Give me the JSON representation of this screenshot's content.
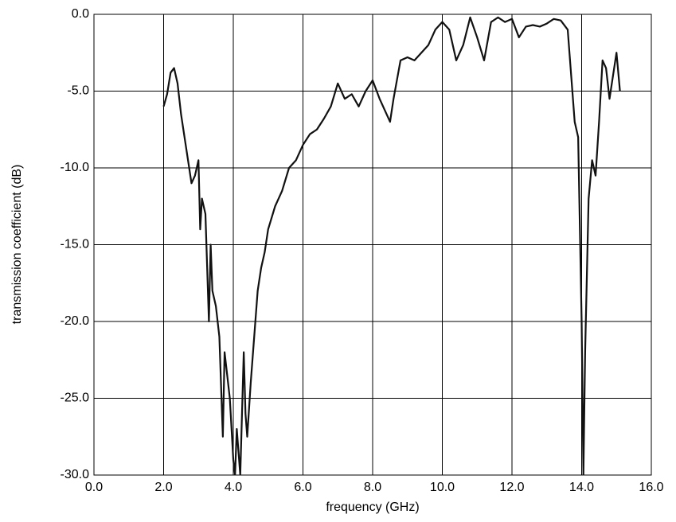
{
  "chart_data": {
    "type": "line",
    "xlabel": "frequency (GHz)",
    "ylabel": "transmission coefficient (dB)",
    "x": [
      2.0,
      2.1,
      2.2,
      2.3,
      2.4,
      2.5,
      2.6,
      2.7,
      2.8,
      2.9,
      3.0,
      3.05,
      3.1,
      3.2,
      3.3,
      3.35,
      3.4,
      3.5,
      3.6,
      3.7,
      3.75,
      3.8,
      3.9,
      4.0,
      4.05,
      4.1,
      4.2,
      4.3,
      4.35,
      4.4,
      4.5,
      4.6,
      4.7,
      4.8,
      4.9,
      5.0,
      5.2,
      5.4,
      5.6,
      5.8,
      6.0,
      6.2,
      6.4,
      6.6,
      6.8,
      7.0,
      7.2,
      7.4,
      7.6,
      7.8,
      8.0,
      8.2,
      8.4,
      8.5,
      8.6,
      8.8,
      9.0,
      9.2,
      9.4,
      9.6,
      9.8,
      10.0,
      10.2,
      10.4,
      10.6,
      10.8,
      11.0,
      11.2,
      11.4,
      11.6,
      11.8,
      12.0,
      12.2,
      12.4,
      12.6,
      12.8,
      13.0,
      13.2,
      13.4,
      13.6,
      13.7,
      13.8,
      13.9,
      14.0,
      14.05,
      14.1,
      14.2,
      14.3,
      14.4,
      14.5,
      14.6,
      14.7,
      14.8,
      14.9,
      15.0,
      15.1
    ],
    "series": [
      {
        "color": "#111111",
        "values": [
          -6,
          -5.2,
          -3.8,
          -3.5,
          -4.5,
          -6.5,
          -8,
          -9.5,
          -11,
          -10.5,
          -9.5,
          -14,
          -12,
          -13,
          -20,
          -15,
          -18,
          -19,
          -21,
          -27.5,
          -22,
          -23,
          -25,
          -29,
          -30,
          -27,
          -30,
          -22,
          -26,
          -27.5,
          -24,
          -21,
          -18,
          -16.5,
          -15.5,
          -14,
          -12.5,
          -11.5,
          -10,
          -9.5,
          -8.5,
          -7.8,
          -7.5,
          -6.8,
          -6,
          -4.5,
          -5.5,
          -5.2,
          -6,
          -5,
          -4.3,
          -5.5,
          -6.5,
          -7,
          -5.5,
          -3,
          -2.8,
          -3,
          -2.5,
          -2,
          -1,
          -0.5,
          -1,
          -3,
          -2,
          -0.2,
          -1.5,
          -3,
          -0.5,
          -0.2,
          -0.5,
          -0.3,
          -1.5,
          -0.8,
          -0.7,
          -0.8,
          -0.6,
          -0.3,
          -0.4,
          -1,
          -4,
          -7,
          -8,
          -20,
          -30,
          -22,
          -12,
          -9.5,
          -10.5,
          -7,
          -3,
          -3.5,
          -5.5,
          -4,
          -2.5,
          -5
        ]
      }
    ],
    "xlim": [
      0,
      16
    ],
    "xticks": [
      {
        "value": 0,
        "label": "0.0"
      },
      {
        "value": 2,
        "label": "2.0"
      },
      {
        "value": 4,
        "label": "4.0"
      },
      {
        "value": 6,
        "label": "6.0"
      },
      {
        "value": 8,
        "label": "8.0"
      },
      {
        "value": 10,
        "label": "10.0"
      },
      {
        "value": 12,
        "label": "12.0"
      },
      {
        "value": 14,
        "label": "14.0"
      },
      {
        "value": 16,
        "label": "16.0"
      }
    ],
    "ylim": [
      -30,
      0
    ],
    "yticks": [
      {
        "value": 0,
        "label": "0.0"
      },
      {
        "value": -5,
        "label": "-5.0"
      },
      {
        "value": -10,
        "label": "-10.0"
      },
      {
        "value": -15,
        "label": "-15.0"
      },
      {
        "value": -20,
        "label": "-20.0"
      },
      {
        "value": -25,
        "label": "-25.0"
      },
      {
        "value": -30,
        "label": "-30.0"
      }
    ],
    "grid": true
  }
}
